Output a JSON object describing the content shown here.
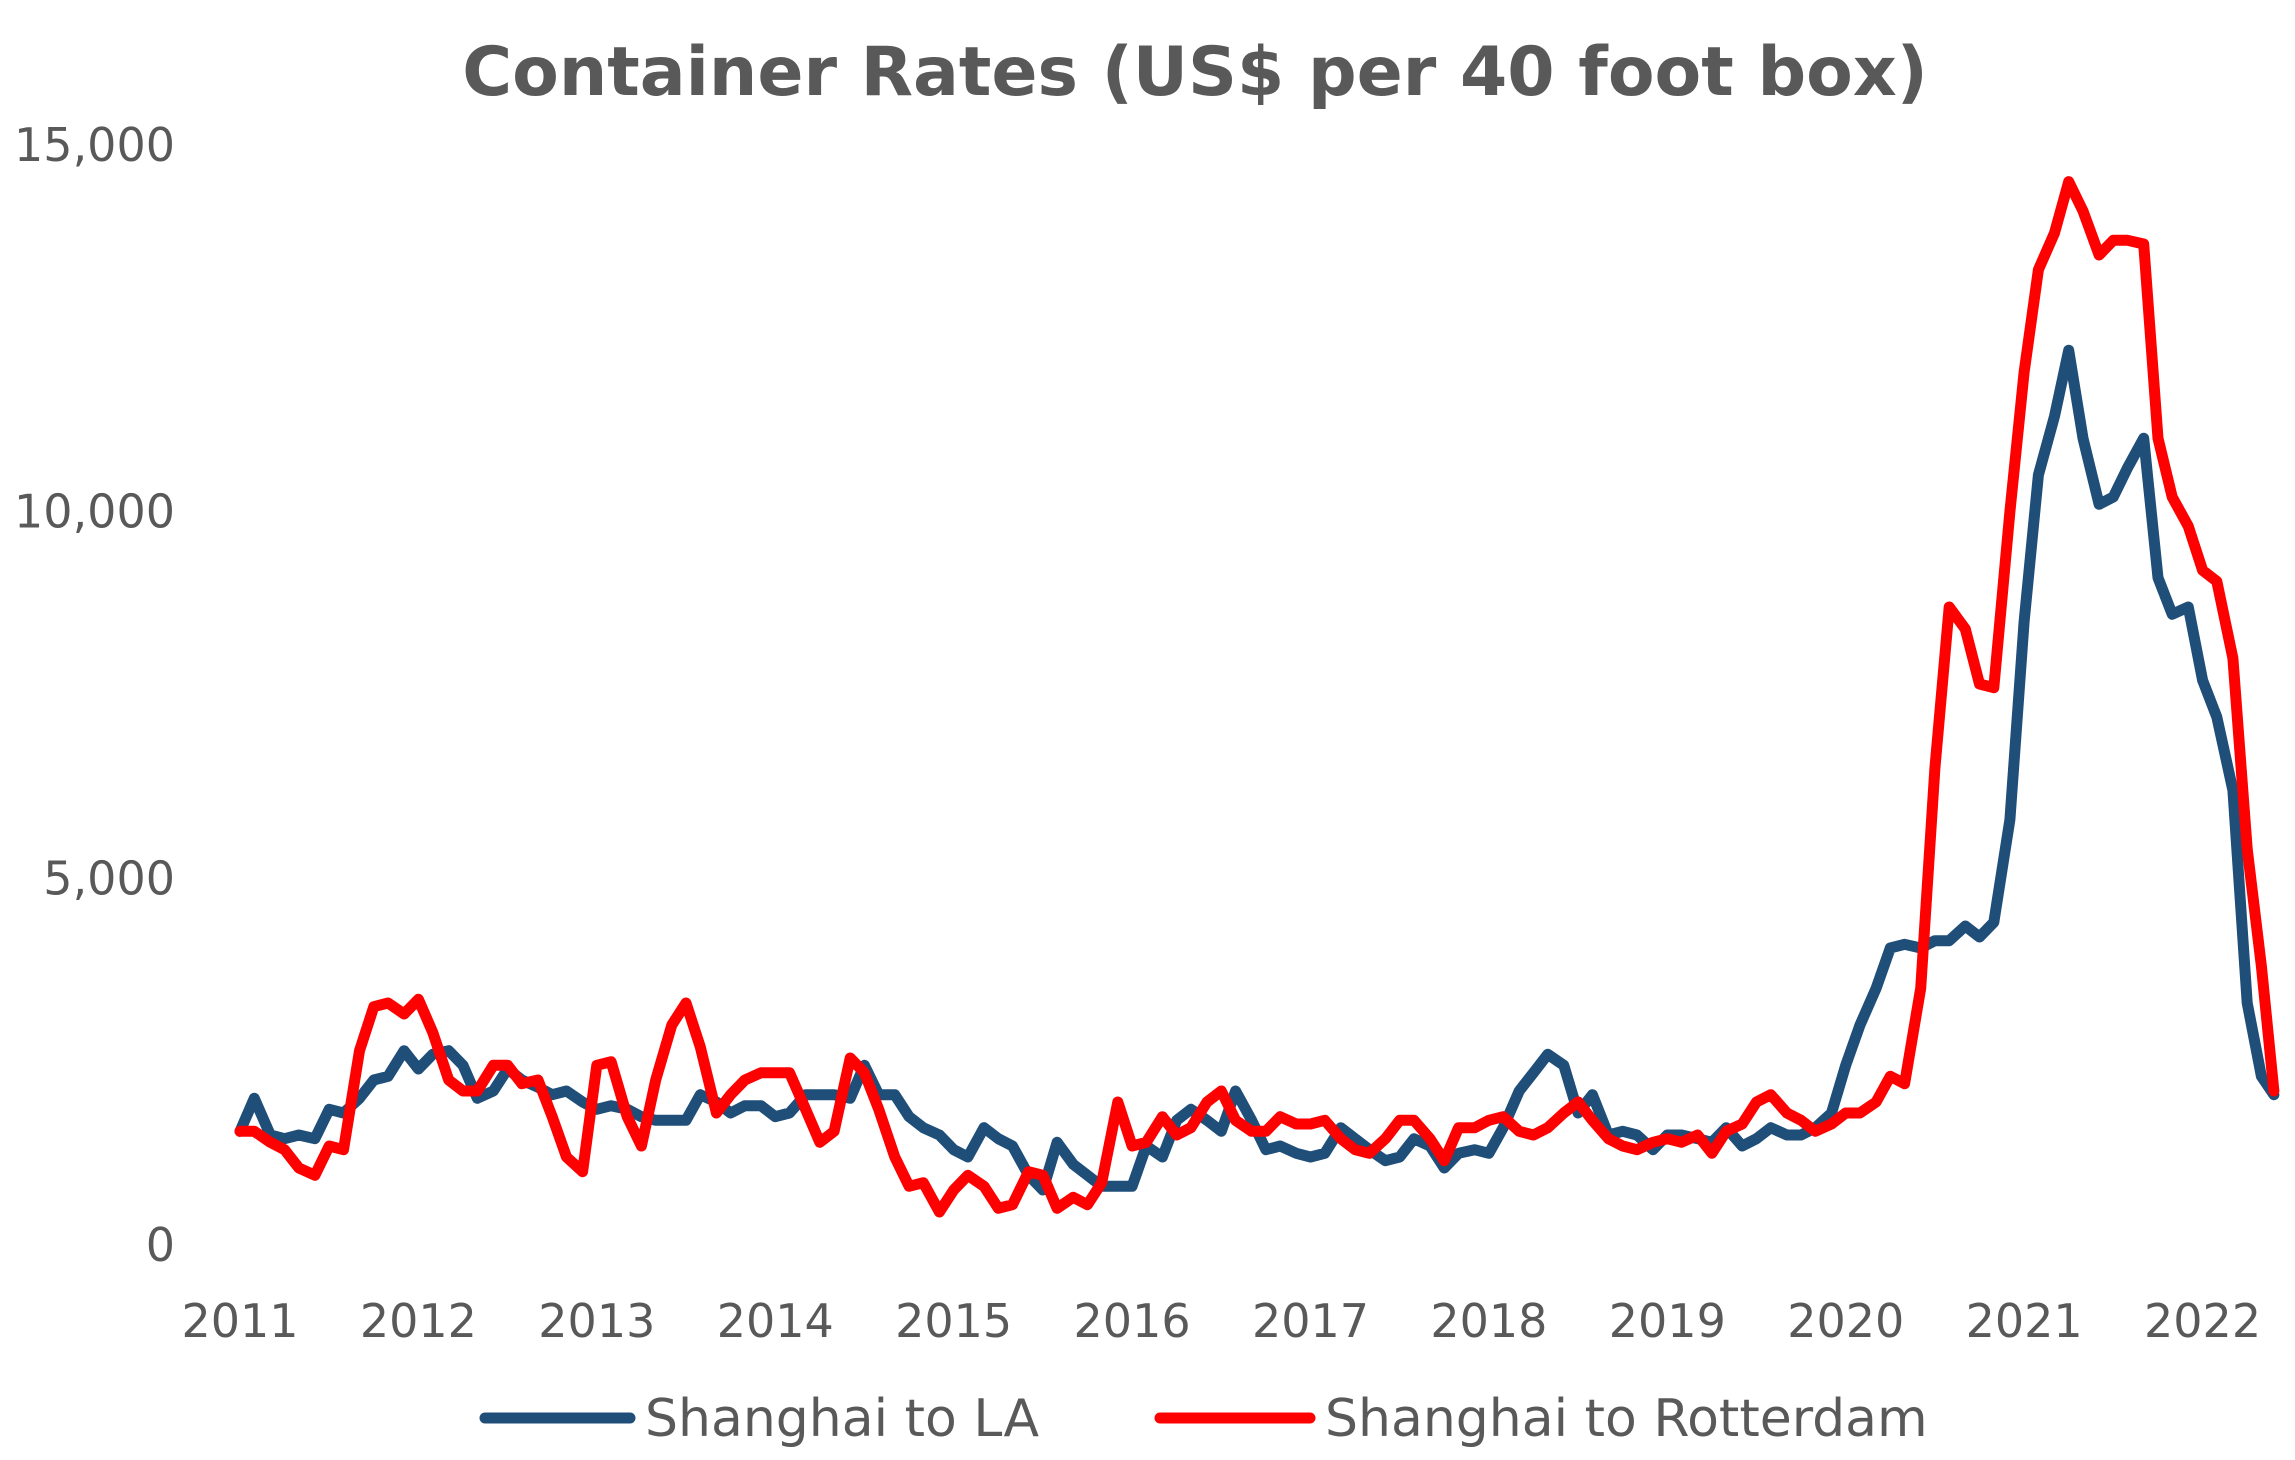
{
  "chart_data": {
    "type": "line",
    "title": "Container Rates (US$ per 40 foot box)",
    "xlabel": "",
    "ylabel": "",
    "xlim": [
      2011.0,
      2022.35
    ],
    "ylim": [
      0,
      15000
    ],
    "x_ticks": [
      "2011",
      "2012",
      "2013",
      "2014",
      "2015",
      "2016",
      "2017",
      "2018",
      "2019",
      "2020",
      "2021",
      "2022"
    ],
    "y_ticks": [
      {
        "value": 0,
        "label": "0"
      },
      {
        "value": 5000,
        "label": "5,000"
      },
      {
        "value": 10000,
        "label": "10,000"
      },
      {
        "value": 15000,
        "label": "15,000"
      }
    ],
    "grid": false,
    "legend_position": "bottom",
    "series": [
      {
        "name": "Shanghai to LA",
        "color": "#1f4e79",
        "points": [
          [
            2011.0,
            1550
          ],
          [
            2011.08,
            2000
          ],
          [
            2011.17,
            1500
          ],
          [
            2011.25,
            1450
          ],
          [
            2011.33,
            1500
          ],
          [
            2011.42,
            1450
          ],
          [
            2011.5,
            1850
          ],
          [
            2011.58,
            1800
          ],
          [
            2011.67,
            2000
          ],
          [
            2011.75,
            2250
          ],
          [
            2011.83,
            2300
          ],
          [
            2011.92,
            2650
          ],
          [
            2012.0,
            2400
          ],
          [
            2012.08,
            2600
          ],
          [
            2012.17,
            2650
          ],
          [
            2012.25,
            2450
          ],
          [
            2012.33,
            2000
          ],
          [
            2012.42,
            2100
          ],
          [
            2012.5,
            2400
          ],
          [
            2012.58,
            2250
          ],
          [
            2012.67,
            2150
          ],
          [
            2012.75,
            2050
          ],
          [
            2012.83,
            2100
          ],
          [
            2012.92,
            1950
          ],
          [
            2013.0,
            1850
          ],
          [
            2013.08,
            1900
          ],
          [
            2013.17,
            1850
          ],
          [
            2013.25,
            1750
          ],
          [
            2013.33,
            1700
          ],
          [
            2013.42,
            1700
          ],
          [
            2013.5,
            1700
          ],
          [
            2013.58,
            2050
          ],
          [
            2013.67,
            1950
          ],
          [
            2013.75,
            1800
          ],
          [
            2013.83,
            1900
          ],
          [
            2013.92,
            1900
          ],
          [
            2014.0,
            1750
          ],
          [
            2014.08,
            1800
          ],
          [
            2014.17,
            2050
          ],
          [
            2014.25,
            2050
          ],
          [
            2014.33,
            2050
          ],
          [
            2014.42,
            2000
          ],
          [
            2014.5,
            2450
          ],
          [
            2014.58,
            2050
          ],
          [
            2014.67,
            2050
          ],
          [
            2014.75,
            1750
          ],
          [
            2014.83,
            1600
          ],
          [
            2014.92,
            1500
          ],
          [
            2015.0,
            1300
          ],
          [
            2015.08,
            1200
          ],
          [
            2015.17,
            1600
          ],
          [
            2015.25,
            1450
          ],
          [
            2015.33,
            1350
          ],
          [
            2015.42,
            950
          ],
          [
            2015.5,
            750
          ],
          [
            2015.58,
            1400
          ],
          [
            2015.67,
            1100
          ],
          [
            2015.75,
            950
          ],
          [
            2015.83,
            800
          ],
          [
            2015.92,
            800
          ],
          [
            2016.0,
            800
          ],
          [
            2016.08,
            1350
          ],
          [
            2016.17,
            1200
          ],
          [
            2016.25,
            1700
          ],
          [
            2016.33,
            1850
          ],
          [
            2016.42,
            1700
          ],
          [
            2016.5,
            1550
          ],
          [
            2016.58,
            2100
          ],
          [
            2016.67,
            1700
          ],
          [
            2016.75,
            1300
          ],
          [
            2016.83,
            1350
          ],
          [
            2016.92,
            1250
          ],
          [
            2017.0,
            1200
          ],
          [
            2017.08,
            1250
          ],
          [
            2017.17,
            1600
          ],
          [
            2017.25,
            1450
          ],
          [
            2017.33,
            1300
          ],
          [
            2017.42,
            1150
          ],
          [
            2017.5,
            1200
          ],
          [
            2017.58,
            1450
          ],
          [
            2017.67,
            1350
          ],
          [
            2017.75,
            1050
          ],
          [
            2017.83,
            1250
          ],
          [
            2017.92,
            1300
          ],
          [
            2018.0,
            1250
          ],
          [
            2018.08,
            1600
          ],
          [
            2018.17,
            2100
          ],
          [
            2018.25,
            2350
          ],
          [
            2018.33,
            2600
          ],
          [
            2018.42,
            2450
          ],
          [
            2018.5,
            1800
          ],
          [
            2018.58,
            2050
          ],
          [
            2018.67,
            1500
          ],
          [
            2018.75,
            1550
          ],
          [
            2018.83,
            1500
          ],
          [
            2018.92,
            1300
          ],
          [
            2019.0,
            1500
          ],
          [
            2019.08,
            1500
          ],
          [
            2019.17,
            1450
          ],
          [
            2019.25,
            1400
          ],
          [
            2019.33,
            1600
          ],
          [
            2019.42,
            1350
          ],
          [
            2019.5,
            1450
          ],
          [
            2019.58,
            1600
          ],
          [
            2019.67,
            1500
          ],
          [
            2019.75,
            1500
          ],
          [
            2019.83,
            1600
          ],
          [
            2019.92,
            1800
          ],
          [
            2020.0,
            2450
          ],
          [
            2020.08,
            3000
          ],
          [
            2020.17,
            3500
          ],
          [
            2020.25,
            4050
          ],
          [
            2020.33,
            4100
          ],
          [
            2020.42,
            4050
          ],
          [
            2020.5,
            4150
          ],
          [
            2020.58,
            4150
          ],
          [
            2020.67,
            4350
          ],
          [
            2020.75,
            4200
          ],
          [
            2020.83,
            4400
          ],
          [
            2020.92,
            5800
          ],
          [
            2021.0,
            8500
          ],
          [
            2021.08,
            10500
          ],
          [
            2021.17,
            11300
          ],
          [
            2021.25,
            12200
          ],
          [
            2021.33,
            11000
          ],
          [
            2021.42,
            10100
          ],
          [
            2021.5,
            10200
          ],
          [
            2021.58,
            10600
          ],
          [
            2021.67,
            11000
          ],
          [
            2021.75,
            9100
          ],
          [
            2021.83,
            8600
          ],
          [
            2021.92,
            8700
          ],
          [
            2022.0,
            7700
          ],
          [
            2022.08,
            7200
          ],
          [
            2022.17,
            6200
          ],
          [
            2022.25,
            3300
          ],
          [
            2022.33,
            2300
          ],
          [
            2022.4,
            2050
          ]
        ]
      },
      {
        "name": "Shanghai to Rotterdam",
        "color": "#ff0000",
        "points": [
          [
            2011.0,
            1550
          ],
          [
            2011.08,
            1550
          ],
          [
            2011.17,
            1400
          ],
          [
            2011.25,
            1300
          ],
          [
            2011.33,
            1050
          ],
          [
            2011.42,
            950
          ],
          [
            2011.5,
            1350
          ],
          [
            2011.58,
            1300
          ],
          [
            2011.67,
            2650
          ],
          [
            2011.75,
            3250
          ],
          [
            2011.83,
            3300
          ],
          [
            2011.92,
            3150
          ],
          [
            2012.0,
            3350
          ],
          [
            2012.08,
            2900
          ],
          [
            2012.17,
            2250
          ],
          [
            2012.25,
            2100
          ],
          [
            2012.33,
            2100
          ],
          [
            2012.42,
            2450
          ],
          [
            2012.5,
            2450
          ],
          [
            2012.58,
            2200
          ],
          [
            2012.67,
            2250
          ],
          [
            2012.75,
            1750
          ],
          [
            2012.83,
            1200
          ],
          [
            2012.92,
            1000
          ],
          [
            2013.0,
            2450
          ],
          [
            2013.08,
            2500
          ],
          [
            2013.17,
            1750
          ],
          [
            2013.25,
            1350
          ],
          [
            2013.33,
            2250
          ],
          [
            2013.42,
            3000
          ],
          [
            2013.5,
            3300
          ],
          [
            2013.58,
            2700
          ],
          [
            2013.67,
            1800
          ],
          [
            2013.75,
            2050
          ],
          [
            2013.83,
            2250
          ],
          [
            2013.92,
            2350
          ],
          [
            2014.0,
            2350
          ],
          [
            2014.08,
            2350
          ],
          [
            2014.17,
            1850
          ],
          [
            2014.25,
            1400
          ],
          [
            2014.33,
            1550
          ],
          [
            2014.42,
            2550
          ],
          [
            2014.5,
            2350
          ],
          [
            2014.58,
            1850
          ],
          [
            2014.67,
            1200
          ],
          [
            2014.75,
            800
          ],
          [
            2014.83,
            850
          ],
          [
            2014.92,
            450
          ],
          [
            2015.0,
            750
          ],
          [
            2015.08,
            950
          ],
          [
            2015.17,
            800
          ],
          [
            2015.25,
            500
          ],
          [
            2015.33,
            550
          ],
          [
            2015.42,
            1000
          ],
          [
            2015.5,
            950
          ],
          [
            2015.58,
            500
          ],
          [
            2015.67,
            650
          ],
          [
            2015.75,
            550
          ],
          [
            2015.83,
            850
          ],
          [
            2015.92,
            1950
          ],
          [
            2016.0,
            1350
          ],
          [
            2016.08,
            1400
          ],
          [
            2016.17,
            1750
          ],
          [
            2016.25,
            1500
          ],
          [
            2016.33,
            1600
          ],
          [
            2016.42,
            1950
          ],
          [
            2016.5,
            2100
          ],
          [
            2016.58,
            1700
          ],
          [
            2016.67,
            1550
          ],
          [
            2016.75,
            1550
          ],
          [
            2016.83,
            1750
          ],
          [
            2016.92,
            1650
          ],
          [
            2017.0,
            1650
          ],
          [
            2017.08,
            1700
          ],
          [
            2017.17,
            1450
          ],
          [
            2017.25,
            1300
          ],
          [
            2017.33,
            1250
          ],
          [
            2017.42,
            1450
          ],
          [
            2017.5,
            1700
          ],
          [
            2017.58,
            1700
          ],
          [
            2017.67,
            1450
          ],
          [
            2017.75,
            1150
          ],
          [
            2017.83,
            1600
          ],
          [
            2017.92,
            1600
          ],
          [
            2018.0,
            1700
          ],
          [
            2018.08,
            1750
          ],
          [
            2018.17,
            1550
          ],
          [
            2018.25,
            1500
          ],
          [
            2018.33,
            1600
          ],
          [
            2018.42,
            1800
          ],
          [
            2018.5,
            1950
          ],
          [
            2018.58,
            1700
          ],
          [
            2018.67,
            1450
          ],
          [
            2018.75,
            1350
          ],
          [
            2018.83,
            1300
          ],
          [
            2018.92,
            1400
          ],
          [
            2019.0,
            1450
          ],
          [
            2019.08,
            1400
          ],
          [
            2019.17,
            1500
          ],
          [
            2019.25,
            1250
          ],
          [
            2019.33,
            1550
          ],
          [
            2019.42,
            1650
          ],
          [
            2019.5,
            1950
          ],
          [
            2019.58,
            2050
          ],
          [
            2019.67,
            1800
          ],
          [
            2019.75,
            1700
          ],
          [
            2019.83,
            1550
          ],
          [
            2019.92,
            1650
          ],
          [
            2020.0,
            1800
          ],
          [
            2020.08,
            1800
          ],
          [
            2020.17,
            1950
          ],
          [
            2020.25,
            2300
          ],
          [
            2020.33,
            2200
          ],
          [
            2020.42,
            3500
          ],
          [
            2020.5,
            6500
          ],
          [
            2020.58,
            8700
          ],
          [
            2020.67,
            8400
          ],
          [
            2020.75,
            7650
          ],
          [
            2020.83,
            7600
          ],
          [
            2020.92,
            10000
          ],
          [
            2021.0,
            11900
          ],
          [
            2021.08,
            13300
          ],
          [
            2021.17,
            13800
          ],
          [
            2021.25,
            14500
          ],
          [
            2021.33,
            14100
          ],
          [
            2021.42,
            13500
          ],
          [
            2021.5,
            13700
          ],
          [
            2021.58,
            13700
          ],
          [
            2021.67,
            13650
          ],
          [
            2021.75,
            11000
          ],
          [
            2021.83,
            10200
          ],
          [
            2021.92,
            9800
          ],
          [
            2022.0,
            9200
          ],
          [
            2022.08,
            9050
          ],
          [
            2022.17,
            8000
          ],
          [
            2022.25,
            5400
          ],
          [
            2022.33,
            3800
          ],
          [
            2022.4,
            2100
          ]
        ]
      }
    ]
  }
}
